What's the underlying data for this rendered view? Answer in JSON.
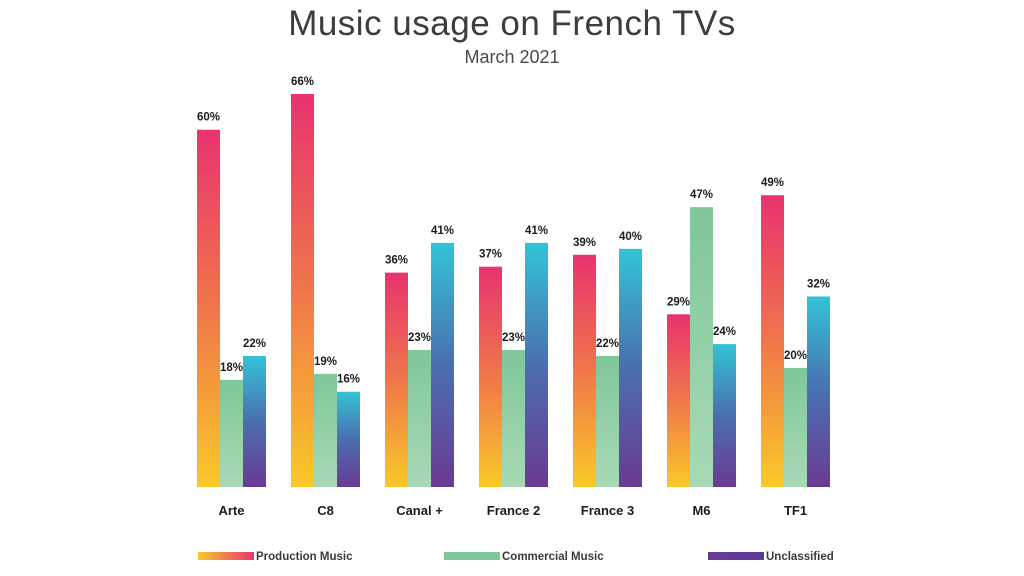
{
  "chart_data": {
    "type": "bar",
    "title": "Music usage on French TVs",
    "subtitle": "March 2021",
    "categories": [
      "Arte",
      "C8",
      "Canal +",
      "France 2",
      "France 3",
      "M6",
      "TF1"
    ],
    "series": [
      {
        "name": "Production Music",
        "values": [
          60,
          66,
          36,
          37,
          39,
          29,
          49
        ],
        "labels": [
          "60%",
          "66%",
          "36%",
          "37%",
          "39%",
          "29%",
          "49%"
        ]
      },
      {
        "name": "Commercial Music",
        "values": [
          18,
          19,
          23,
          23,
          22,
          47,
          20
        ],
        "labels": [
          "18%",
          "19%",
          "23%",
          "23%",
          "22%",
          "47%",
          "20%"
        ]
      },
      {
        "name": "Unclassified",
        "values": [
          22,
          16,
          41,
          41,
          40,
          24,
          32
        ],
        "labels": [
          "22%",
          "16%",
          "41%",
          "41%",
          "40%",
          "24%",
          "32%"
        ]
      }
    ],
    "ylim": [
      0,
      66
    ],
    "grid": false,
    "legend_position": "bottom",
    "colors": {
      "production_top": "#e8336f",
      "production_bottom": "#f9c928",
      "commercial_top": "#7fc79a",
      "commercial_bottom": "#a8d9b6",
      "unclassified_top": "#33c3d6",
      "unclassified_bottom": "#6b3a93"
    }
  }
}
